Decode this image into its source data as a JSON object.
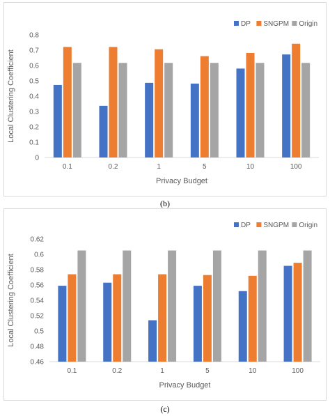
{
  "chart_data": [
    {
      "type": "bar",
      "categories": [
        "0.1",
        "0.2",
        "1",
        "5",
        "10",
        "100"
      ],
      "series": [
        {
          "name": "DP",
          "values": [
            0.473,
            0.337,
            0.487,
            0.482,
            0.58,
            0.672
          ],
          "color": "#4472C4"
        },
        {
          "name": "SNGPM",
          "values": [
            0.721,
            0.721,
            0.706,
            0.661,
            0.682,
            0.742
          ],
          "color": "#ED7D31"
        },
        {
          "name": "Origin",
          "values": [
            0.617,
            0.617,
            0.617,
            0.617,
            0.617,
            0.617
          ],
          "color": "#A5A5A5"
        }
      ],
      "xlabel": "Privacy Budget",
      "ylabel": "Local Clustering Coefficient",
      "ylim": [
        0,
        0.8
      ],
      "yticks": [
        "0",
        "0.1",
        "0.2",
        "0.3",
        "0.4",
        "0.5",
        "0.6",
        "0.7",
        "0.8"
      ],
      "grid": false,
      "legend": "top-right",
      "caption": "(b)"
    },
    {
      "type": "bar",
      "categories": [
        "0.1",
        "0.2",
        "1",
        "5",
        "10",
        "100"
      ],
      "series": [
        {
          "name": "DP",
          "values": [
            0.559,
            0.563,
            0.514,
            0.559,
            0.552,
            0.585
          ],
          "color": "#4472C4"
        },
        {
          "name": "SNGPM",
          "values": [
            0.574,
            0.574,
            0.574,
            0.573,
            0.572,
            0.589
          ],
          "color": "#ED7D31"
        },
        {
          "name": "Origin",
          "values": [
            0.605,
            0.605,
            0.605,
            0.605,
            0.605,
            0.605
          ],
          "color": "#A5A5A5"
        }
      ],
      "xlabel": "Privacy Budget",
      "ylabel": "Local Clustering Coefficient",
      "ylim": [
        0.46,
        0.62
      ],
      "yticks": [
        "0.46",
        "0.48",
        "0.5",
        "0.52",
        "0.54",
        "0.56",
        "0.58",
        "0.6",
        "0.62"
      ],
      "grid": false,
      "legend": "top-right",
      "caption": "(c)"
    }
  ]
}
